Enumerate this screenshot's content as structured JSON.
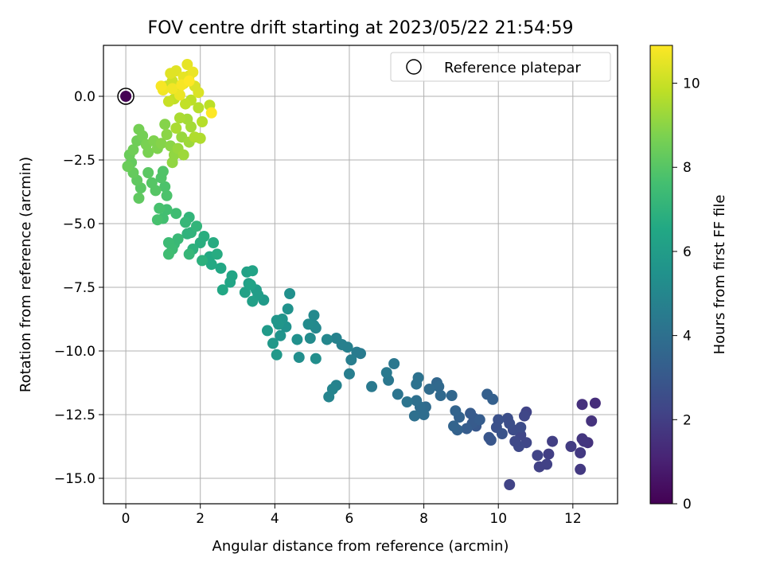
{
  "chart_data": {
    "type": "scatter",
    "title": "FOV centre drift starting at 2023/05/22 21:54:59",
    "xlabel": "Angular distance from reference (arcmin)",
    "ylabel": "Rotation from reference (arcmin)",
    "xlim": [
      -0.6,
      13.2
    ],
    "ylim": [
      -16.0,
      2.0
    ],
    "xticks": [
      0,
      2,
      4,
      6,
      8,
      10,
      12
    ],
    "yticks": [
      0.0,
      -2.5,
      -5.0,
      -7.5,
      -10.0,
      -12.5,
      -15.0
    ],
    "grid": true,
    "legend": {
      "position": "top-right",
      "entries": [
        "Reference platepar"
      ]
    },
    "reference_point": {
      "x": 0,
      "y": 0,
      "hours": 0
    },
    "colorbar": {
      "label": "Hours from first FF file",
      "min": 0,
      "max": 10.9,
      "ticks": [
        0,
        2,
        4,
        6,
        8,
        10
      ],
      "colormap": "viridis"
    },
    "points_note": "[x, y, hours]",
    "points": [
      [
        12.6,
        -12.05,
        1.4
      ],
      [
        12.25,
        -12.1,
        1.5
      ],
      [
        12.5,
        -12.75,
        1.6
      ],
      [
        12.4,
        -13.6,
        1.6
      ],
      [
        12.25,
        -13.45,
        1.7
      ],
      [
        12.3,
        -13.55,
        1.7
      ],
      [
        12.2,
        -14.0,
        1.8
      ],
      [
        12.2,
        -14.65,
        1.8
      ],
      [
        11.95,
        -13.75,
        1.9
      ],
      [
        11.45,
        -13.55,
        2.0
      ],
      [
        11.35,
        -14.05,
        2.0
      ],
      [
        11.3,
        -14.45,
        2.1
      ],
      [
        11.1,
        -14.55,
        2.1
      ],
      [
        11.05,
        -14.1,
        2.2
      ],
      [
        10.75,
        -12.4,
        2.2
      ],
      [
        10.7,
        -12.55,
        2.3
      ],
      [
        10.6,
        -13.3,
        2.3
      ],
      [
        10.75,
        -13.6,
        2.3
      ],
      [
        10.55,
        -13.75,
        2.4
      ],
      [
        10.45,
        -13.55,
        2.4
      ],
      [
        10.4,
        -13.1,
        2.5
      ],
      [
        10.6,
        -13.0,
        2.5
      ],
      [
        10.3,
        -12.85,
        2.6
      ],
      [
        10.25,
        -12.65,
        2.6
      ],
      [
        10.0,
        -12.7,
        2.7
      ],
      [
        9.95,
        -13.0,
        2.7
      ],
      [
        10.1,
        -13.25,
        2.8
      ],
      [
        10.3,
        -15.25,
        2.2
      ],
      [
        9.75,
        -13.4,
        2.9
      ],
      [
        9.8,
        -13.5,
        2.9
      ],
      [
        9.4,
        -12.95,
        3.0
      ],
      [
        9.35,
        -12.65,
        3.0
      ],
      [
        9.25,
        -12.45,
        3.1
      ],
      [
        9.3,
        -12.85,
        3.1
      ],
      [
        9.5,
        -12.7,
        3.2
      ],
      [
        9.15,
        -13.05,
        3.2
      ],
      [
        9.7,
        -11.7,
        3.3
      ],
      [
        9.85,
        -11.9,
        3.3
      ],
      [
        8.95,
        -12.6,
        3.4
      ],
      [
        8.9,
        -13.1,
        3.4
      ],
      [
        8.8,
        -12.95,
        3.5
      ],
      [
        8.85,
        -12.35,
        3.5
      ],
      [
        8.75,
        -11.75,
        3.6
      ],
      [
        8.35,
        -11.25,
        3.6
      ],
      [
        8.4,
        -11.4,
        3.7
      ],
      [
        8.45,
        -11.75,
        3.7
      ],
      [
        8.15,
        -11.5,
        3.8
      ],
      [
        8.05,
        -12.2,
        3.8
      ],
      [
        8.0,
        -12.5,
        3.9
      ],
      [
        7.9,
        -12.2,
        3.9
      ],
      [
        7.8,
        -11.95,
        4.0
      ],
      [
        7.75,
        -12.55,
        4.0
      ],
      [
        7.85,
        -11.05,
        4.1
      ],
      [
        7.8,
        -11.3,
        4.1
      ],
      [
        7.55,
        -12.0,
        4.2
      ],
      [
        7.3,
        -11.7,
        4.2
      ],
      [
        7.2,
        -10.5,
        4.3
      ],
      [
        7.05,
        -11.15,
        4.3
      ],
      [
        7.0,
        -10.85,
        4.4
      ],
      [
        6.6,
        -11.4,
        4.4
      ],
      [
        6.3,
        -10.1,
        4.5
      ],
      [
        6.2,
        -10.05,
        4.5
      ],
      [
        6.05,
        -10.35,
        4.6
      ],
      [
        6.0,
        -10.9,
        4.6
      ],
      [
        5.95,
        -9.85,
        4.7
      ],
      [
        5.8,
        -9.75,
        4.7
      ],
      [
        5.65,
        -9.5,
        4.8
      ],
      [
        5.65,
        -11.35,
        4.8
      ],
      [
        5.55,
        -11.5,
        4.9
      ],
      [
        5.45,
        -11.8,
        4.9
      ],
      [
        5.4,
        -9.55,
        5.0
      ],
      [
        5.1,
        -9.1,
        5.0
      ],
      [
        5.05,
        -8.6,
        5.1
      ],
      [
        5.05,
        -9.0,
        5.1
      ],
      [
        4.95,
        -9.5,
        5.2
      ],
      [
        4.9,
        -8.95,
        5.2
      ],
      [
        5.1,
        -10.3,
        5.3
      ],
      [
        4.65,
        -10.25,
        5.3
      ],
      [
        4.6,
        -9.55,
        5.4
      ],
      [
        4.4,
        -7.75,
        5.4
      ],
      [
        4.35,
        -8.35,
        5.5
      ],
      [
        4.3,
        -9.05,
        5.5
      ],
      [
        4.2,
        -8.75,
        5.6
      ],
      [
        4.15,
        -9.4,
        5.6
      ],
      [
        4.1,
        -8.95,
        5.7
      ],
      [
        4.05,
        -8.8,
        5.7
      ],
      [
        3.95,
        -9.7,
        5.8
      ],
      [
        4.05,
        -10.15,
        5.8
      ],
      [
        3.8,
        -9.2,
        5.9
      ],
      [
        3.7,
        -8.0,
        5.9
      ],
      [
        3.55,
        -7.8,
        6.0
      ],
      [
        3.5,
        -7.6,
        6.0
      ],
      [
        3.4,
        -8.05,
        6.1
      ],
      [
        3.3,
        -7.35,
        6.1
      ],
      [
        3.2,
        -7.7,
        6.2
      ],
      [
        3.25,
        -6.9,
        6.2
      ],
      [
        3.4,
        -6.85,
        6.3
      ],
      [
        3.35,
        -7.4,
        6.3
      ],
      [
        2.85,
        -7.05,
        6.4
      ],
      [
        2.8,
        -7.3,
        6.4
      ],
      [
        2.55,
        -6.75,
        6.5
      ],
      [
        2.6,
        -7.6,
        6.5
      ],
      [
        2.3,
        -6.6,
        6.6
      ],
      [
        2.25,
        -6.3,
        6.6
      ],
      [
        2.45,
        -6.2,
        6.7
      ],
      [
        2.35,
        -5.75,
        6.7
      ],
      [
        2.1,
        -5.5,
        6.8
      ],
      [
        2.0,
        -5.75,
        6.8
      ],
      [
        2.05,
        -6.45,
        6.9
      ],
      [
        1.8,
        -6.0,
        6.9
      ],
      [
        1.75,
        -5.35,
        7.0
      ],
      [
        1.65,
        -5.4,
        7.0
      ],
      [
        1.9,
        -5.1,
        7.1
      ],
      [
        1.7,
        -4.75,
        7.1
      ],
      [
        1.6,
        -4.95,
        7.2
      ],
      [
        1.7,
        -6.2,
        7.2
      ],
      [
        1.4,
        -5.6,
        7.3
      ],
      [
        1.3,
        -5.8,
        7.3
      ],
      [
        1.15,
        -5.75,
        7.4
      ],
      [
        1.25,
        -6.0,
        7.4
      ],
      [
        1.15,
        -6.2,
        7.5
      ],
      [
        1.35,
        -4.6,
        7.5
      ],
      [
        1.1,
        -4.45,
        7.6
      ],
      [
        1.0,
        -4.8,
        7.6
      ],
      [
        0.9,
        -4.4,
        7.7
      ],
      [
        0.85,
        -4.85,
        7.7
      ],
      [
        1.1,
        -3.9,
        7.8
      ],
      [
        1.05,
        -3.55,
        7.8
      ],
      [
        0.95,
        -3.2,
        7.9
      ],
      [
        1.0,
        -2.95,
        7.9
      ],
      [
        0.8,
        -3.7,
        8.0
      ],
      [
        0.7,
        -3.4,
        8.0
      ],
      [
        0.6,
        -3.0,
        8.1
      ],
      [
        0.4,
        -3.6,
        8.1
      ],
      [
        0.35,
        -4.0,
        8.2
      ],
      [
        0.3,
        -3.3,
        8.2
      ],
      [
        0.2,
        -3.0,
        8.3
      ],
      [
        0.15,
        -2.6,
        8.3
      ],
      [
        0.05,
        -2.75,
        8.4
      ],
      [
        0.1,
        -2.3,
        8.4
      ],
      [
        0.2,
        -2.1,
        8.5
      ],
      [
        0.3,
        -1.75,
        8.5
      ],
      [
        0.35,
        -1.3,
        8.6
      ],
      [
        0.45,
        -1.55,
        8.6
      ],
      [
        0.6,
        -2.2,
        8.7
      ],
      [
        0.55,
        -1.9,
        8.7
      ],
      [
        0.75,
        -1.75,
        8.8
      ],
      [
        0.85,
        -2.05,
        8.8
      ],
      [
        0.95,
        -1.85,
        8.9
      ],
      [
        1.05,
        -1.1,
        8.9
      ],
      [
        1.1,
        -1.5,
        9.0
      ],
      [
        1.2,
        -1.95,
        9.0
      ],
      [
        1.3,
        -2.3,
        9.1
      ],
      [
        1.25,
        -2.6,
        9.1
      ],
      [
        1.4,
        -2.05,
        9.2
      ],
      [
        1.5,
        -1.6,
        9.2
      ],
      [
        1.55,
        -2.3,
        9.3
      ],
      [
        1.7,
        -1.8,
        9.3
      ],
      [
        1.75,
        -1.2,
        9.4
      ],
      [
        1.65,
        -0.9,
        9.4
      ],
      [
        1.45,
        -0.85,
        9.5
      ],
      [
        1.35,
        -1.25,
        9.5
      ],
      [
        1.85,
        -1.6,
        9.6
      ],
      [
        2.0,
        -1.65,
        9.6
      ],
      [
        2.05,
        -1.0,
        9.7
      ],
      [
        1.95,
        -0.45,
        9.7
      ],
      [
        2.25,
        -0.35,
        9.8
      ],
      [
        1.75,
        -0.15,
        9.8
      ],
      [
        1.6,
        -0.3,
        9.9
      ],
      [
        1.3,
        -0.1,
        9.9
      ],
      [
        1.15,
        -0.2,
        10.0
      ],
      [
        1.1,
        0.4,
        10.0
      ],
      [
        1.25,
        0.6,
        10.1
      ],
      [
        1.4,
        0.2,
        10.1
      ],
      [
        1.55,
        0.5,
        10.2
      ],
      [
        1.7,
        0.8,
        10.2
      ],
      [
        1.85,
        0.4,
        10.3
      ],
      [
        1.95,
        0.15,
        10.3
      ],
      [
        1.2,
        0.9,
        10.4
      ],
      [
        1.35,
        1.0,
        10.4
      ],
      [
        1.55,
        0.75,
        10.5
      ],
      [
        1.65,
        1.25,
        10.5
      ],
      [
        1.8,
        0.95,
        10.6
      ],
      [
        1.45,
        0.05,
        10.6
      ],
      [
        1.25,
        0.3,
        10.7
      ],
      [
        1.0,
        0.25,
        10.7
      ],
      [
        0.95,
        0.4,
        10.8
      ],
      [
        1.5,
        0.45,
        10.8
      ],
      [
        1.7,
        0.6,
        10.9
      ],
      [
        2.3,
        -0.65,
        10.9
      ]
    ]
  }
}
